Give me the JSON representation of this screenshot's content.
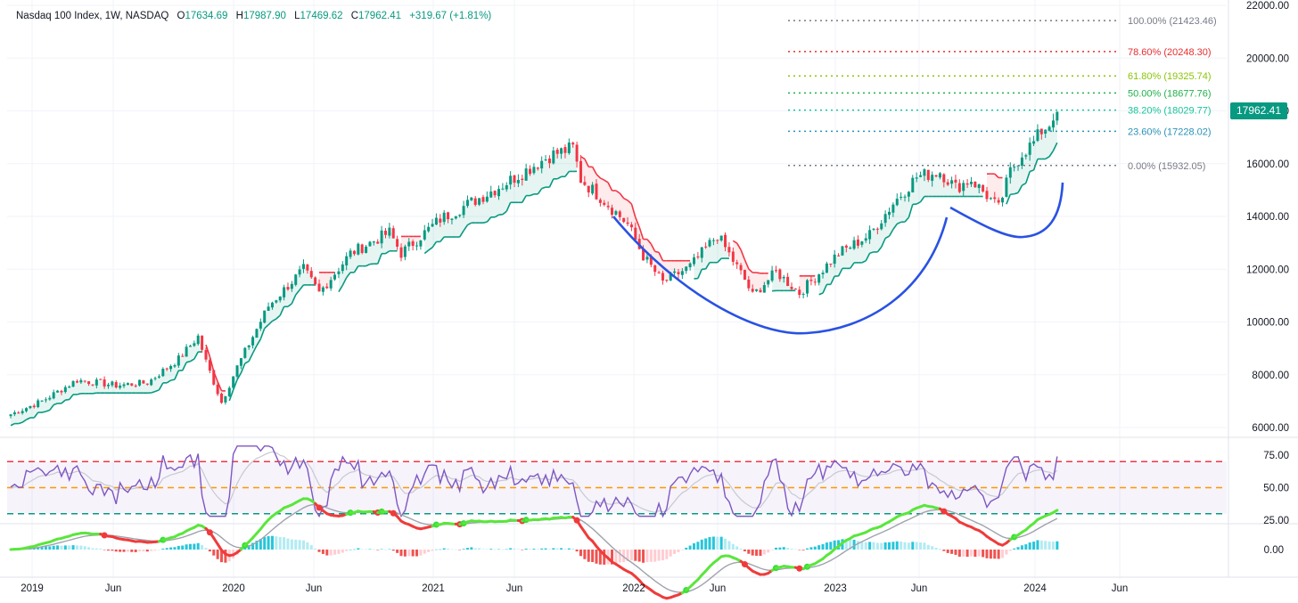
{
  "header": {
    "symbol": "Nasdaq 100 Index, 1W, NASDAQ",
    "open_label": "O",
    "open": "17634.69",
    "high_label": "H",
    "high": "17987.90",
    "low_label": "L",
    "low": "17469.62",
    "close_label": "C",
    "close": "17962.41",
    "change": "+319.67 (+1.81%)"
  },
  "last_price": "17962.41",
  "colors": {
    "up": "#089981",
    "down": "#f23645",
    "cup": "#2952e3",
    "rsi": "#7e57c2",
    "macd_up": "#5ae63c",
    "macd_down": "#ef3b3b"
  },
  "chart_data": {
    "type": "candlestick",
    "title": "Nasdaq 100 Index, 1W, NASDAQ",
    "price_axis": {
      "min": 6000,
      "max": 22000,
      "ticks": [
        "22000.00",
        "20000.00",
        "18000.00",
        "16000.00",
        "14000.00",
        "12000.00",
        "10000.00",
        "8000.00",
        "6000.00"
      ]
    },
    "time_axis": {
      "labels": [
        "2019",
        "Jun",
        "2020",
        "Jun",
        "2021",
        "Jun",
        "2022",
        "Jun",
        "2023",
        "Jun",
        "2024",
        "Jun"
      ]
    },
    "anchors": [
      {
        "t": 0,
        "v": 6500
      },
      {
        "t": 8,
        "v": 7000
      },
      {
        "t": 17,
        "v": 7800
      },
      {
        "t": 27,
        "v": 7600
      },
      {
        "t": 35,
        "v": 7700
      },
      {
        "t": 43,
        "v": 8600
      },
      {
        "t": 48,
        "v": 9450
      },
      {
        "t": 50,
        "v": 8500
      },
      {
        "t": 54,
        "v": 6950
      },
      {
        "t": 58,
        "v": 8300
      },
      {
        "t": 66,
        "v": 10600
      },
      {
        "t": 75,
        "v": 12000
      },
      {
        "t": 79,
        "v": 11100
      },
      {
        "t": 87,
        "v": 12600
      },
      {
        "t": 97,
        "v": 13400
      },
      {
        "t": 100,
        "v": 12600
      },
      {
        "t": 110,
        "v": 13900
      },
      {
        "t": 120,
        "v": 14700
      },
      {
        "t": 126,
        "v": 15200
      },
      {
        "t": 138,
        "v": 16300
      },
      {
        "t": 144,
        "v": 16600
      },
      {
        "t": 146,
        "v": 15400
      },
      {
        "t": 152,
        "v": 14600
      },
      {
        "t": 158,
        "v": 13700
      },
      {
        "t": 162,
        "v": 12500
      },
      {
        "t": 167,
        "v": 11500
      },
      {
        "t": 174,
        "v": 12100
      },
      {
        "t": 181,
        "v": 13300
      },
      {
        "t": 188,
        "v": 11600
      },
      {
        "t": 190,
        "v": 11000
      },
      {
        "t": 196,
        "v": 11900
      },
      {
        "t": 202,
        "v": 11100
      },
      {
        "t": 208,
        "v": 12000
      },
      {
        "t": 212,
        "v": 12600
      },
      {
        "t": 220,
        "v": 13300
      },
      {
        "t": 226,
        "v": 14500
      },
      {
        "t": 232,
        "v": 15500
      },
      {
        "t": 238,
        "v": 15700
      },
      {
        "t": 242,
        "v": 15100
      },
      {
        "t": 246,
        "v": 15400
      },
      {
        "t": 250,
        "v": 14800
      },
      {
        "t": 253,
        "v": 14300
      },
      {
        "t": 256,
        "v": 15700
      },
      {
        "t": 259,
        "v": 16400
      },
      {
        "t": 262,
        "v": 16800
      },
      {
        "t": 264,
        "v": 17250
      },
      {
        "t": 267,
        "v": 17634.69
      },
      {
        "t": 268,
        "v": 17962.41
      }
    ],
    "fib_levels": [
      {
        "label": "100.00% (21423.46)",
        "value": 21423.46,
        "color": "#787b86"
      },
      {
        "label": "78.60% (20248.30)",
        "value": 20248.3,
        "color": "#e62e2e"
      },
      {
        "label": "61.80% (19325.74)",
        "value": 19325.74,
        "color": "#8bc40a"
      },
      {
        "label": "50.00% (18677.76)",
        "value": 18677.76,
        "color": "#21b04b"
      },
      {
        "label": "38.20% (18029.77)",
        "value": 18029.77,
        "color": "#18c49a"
      },
      {
        "label": "23.60% (17228.02)",
        "value": 17228.02,
        "color": "#2b91b8"
      },
      {
        "label": "0.00% (15932.05)",
        "value": 15932.05,
        "color": "#787b86"
      }
    ],
    "rsi": {
      "levels": [
        70,
        50,
        30
      ],
      "ticks": [
        "75.00",
        "50.00",
        "25.00"
      ],
      "last": 74
    },
    "macd": {
      "ticks": [
        "0.00"
      ]
    }
  }
}
